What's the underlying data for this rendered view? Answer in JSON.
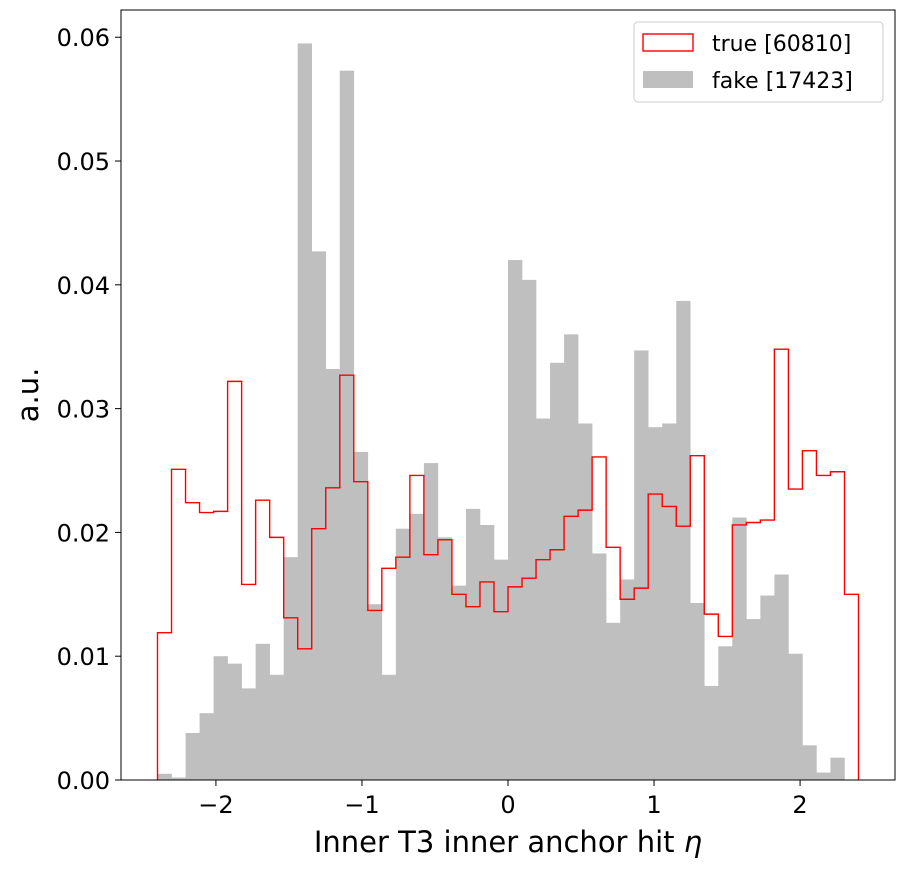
{
  "chart_data": {
    "type": "histogram",
    "xlabel": "Inner T3 inner anchor hit",
    "xlabel_symbol": "η",
    "ylabel": "a.u.",
    "xlim": [
      -2.65,
      2.65
    ],
    "ylim": [
      0,
      0.0622
    ],
    "x_ticks": [
      -2,
      -1,
      0,
      1,
      2
    ],
    "x_tick_labels": [
      "−2",
      "−1",
      "0",
      "1",
      "2"
    ],
    "y_ticks": [
      0,
      0.01,
      0.02,
      0.03,
      0.04,
      0.05,
      0.06
    ],
    "y_tick_labels": [
      "0.00",
      "0.01",
      "0.02",
      "0.03",
      "0.04",
      "0.05",
      "0.06"
    ],
    "bin_edges_range": [
      -2.4,
      2.4
    ],
    "bin_count": 50,
    "legend_position": "upper-right",
    "series": [
      {
        "name": "true [60810]",
        "style": "step",
        "color": "#ff0000",
        "values": [
          0.0119,
          0.0251,
          0.0224,
          0.0216,
          0.0217,
          0.0322,
          0.0158,
          0.0226,
          0.0196,
          0.0131,
          0.0106,
          0.0203,
          0.0236,
          0.0327,
          0.0241,
          0.0137,
          0.0171,
          0.018,
          0.0246,
          0.0182,
          0.0194,
          0.015,
          0.014,
          0.016,
          0.0136,
          0.0156,
          0.0163,
          0.0178,
          0.0186,
          0.0213,
          0.0218,
          0.0261,
          0.0188,
          0.0146,
          0.0155,
          0.0231,
          0.0221,
          0.0205,
          0.0262,
          0.0134,
          0.0116,
          0.0206,
          0.0208,
          0.021,
          0.0348,
          0.0235,
          0.0266,
          0.0246,
          0.0249,
          0.015
        ]
      },
      {
        "name": "fake [17423]",
        "style": "filled",
        "color": "#bfbfbf",
        "values": [
          0.0005,
          0.0002,
          0.0038,
          0.0054,
          0.01,
          0.0094,
          0.0074,
          0.011,
          0.0085,
          0.018,
          0.0595,
          0.0427,
          0.0332,
          0.0573,
          0.0265,
          0.0142,
          0.0085,
          0.0203,
          0.0215,
          0.0256,
          0.0196,
          0.0157,
          0.0219,
          0.0206,
          0.0178,
          0.042,
          0.0404,
          0.0292,
          0.0337,
          0.036,
          0.0288,
          0.0183,
          0.0127,
          0.0162,
          0.0347,
          0.0285,
          0.0288,
          0.0387,
          0.0143,
          0.0076,
          0.0108,
          0.0212,
          0.013,
          0.0149,
          0.0166,
          0.0102,
          0.0028,
          0.0006,
          0.0018,
          0.0
        ]
      }
    ]
  }
}
